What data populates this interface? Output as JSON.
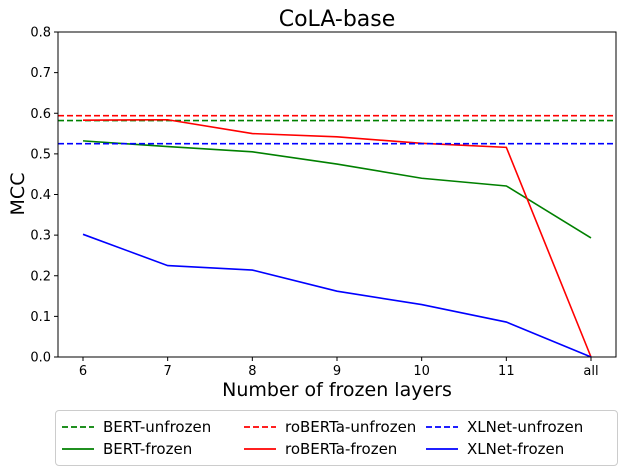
{
  "chart_data": {
    "type": "line",
    "title": "CoLA-base",
    "xlabel": "Number of frozen layers",
    "ylabel": "MCC",
    "categories": [
      "6",
      "7",
      "8",
      "9",
      "10",
      "11",
      "all"
    ],
    "ylim": [
      0.0,
      0.8
    ],
    "yticks": [
      "0.0",
      "0.1",
      "0.2",
      "0.3",
      "0.4",
      "0.5",
      "0.6",
      "0.7",
      "0.8"
    ],
    "grid": false,
    "legend_position": "bottom",
    "series": [
      {
        "name": "BERT-unfrozen",
        "style": "dashed",
        "color": "#008000",
        "values": [
          0.582,
          0.582,
          0.582,
          0.582,
          0.582,
          0.582,
          0.582
        ]
      },
      {
        "name": "BERT-frozen",
        "style": "solid",
        "color": "#008000",
        "values": [
          0.532,
          0.518,
          0.505,
          0.475,
          0.44,
          0.421,
          0.293
        ]
      },
      {
        "name": "roBERTa-unfrozen",
        "style": "dashed",
        "color": "#ff0000",
        "values": [
          0.594,
          0.594,
          0.594,
          0.594,
          0.594,
          0.594,
          0.594
        ]
      },
      {
        "name": "roBERTa-frozen",
        "style": "solid",
        "color": "#ff0000",
        "values": [
          0.583,
          0.584,
          0.55,
          0.542,
          0.526,
          0.516,
          0.0
        ]
      },
      {
        "name": "XLNet-unfrozen",
        "style": "dashed",
        "color": "#0000ff",
        "values": [
          0.525,
          0.525,
          0.525,
          0.525,
          0.525,
          0.525,
          0.525
        ]
      },
      {
        "name": "XLNet-frozen",
        "style": "solid",
        "color": "#0000ff",
        "values": [
          0.302,
          0.225,
          0.214,
          0.162,
          0.129,
          0.086,
          0.0
        ]
      }
    ]
  }
}
